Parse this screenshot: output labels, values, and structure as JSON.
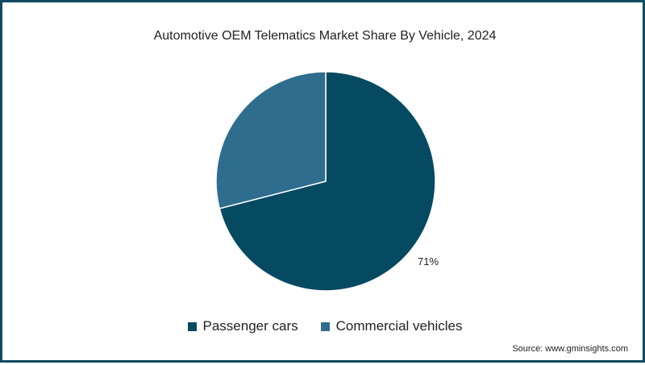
{
  "chart_data": {
    "type": "pie",
    "title": "Automotive OEM Telematics Market Share By Vehicle, 2024",
    "slices": [
      {
        "name": "Passenger cars",
        "value": 71,
        "label": "71%",
        "color": "#064a62"
      },
      {
        "name": "Commercial vehicles",
        "value": 29,
        "label": "",
        "color": "#2e6d8e"
      }
    ],
    "legend_position": "bottom"
  },
  "source": "Source: www.gminsights.com"
}
